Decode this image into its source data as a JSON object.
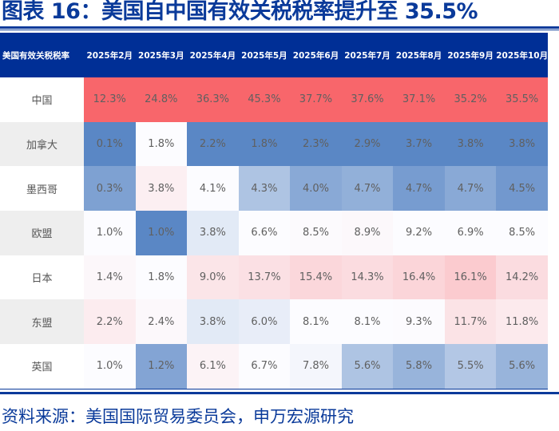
{
  "title": "图表 16：美国自中国有效关税税率提升至 35.5%",
  "source": "资料来源：美国国际贸易委员会，申万宏源研究",
  "colors": {
    "header_bg": "#002f96",
    "title": "#0a3a9a",
    "high_red": "#f8666b",
    "low_blue": "#5a87c5",
    "mid_white": "#fcfcff"
  },
  "table": {
    "corner_label": "美国有效关税税率",
    "columns": [
      "2025年2月",
      "2025年3月",
      "2025年4月",
      "2025年5月",
      "2025年6月",
      "2025年7月",
      "2025年8月",
      "2025年9月",
      "2025年10月"
    ],
    "rows": [
      {
        "label": "中国",
        "values": [
          "12.3%",
          "24.8%",
          "36.3%",
          "45.3%",
          "37.7%",
          "37.6%",
          "37.1%",
          "35.2%",
          "35.5%"
        ]
      },
      {
        "label": "加拿大",
        "values": [
          "0.1%",
          "1.8%",
          "2.2%",
          "1.8%",
          "2.3%",
          "2.9%",
          "3.7%",
          "3.8%",
          "3.8%"
        ]
      },
      {
        "label": "墨西哥",
        "values": [
          "0.3%",
          "3.8%",
          "4.1%",
          "4.3%",
          "4.0%",
          "4.7%",
          "4.7%",
          "4.7%",
          "4.5%"
        ]
      },
      {
        "label": "欧盟",
        "values": [
          "1.0%",
          "1.0%",
          "3.8%",
          "6.6%",
          "8.5%",
          "8.9%",
          "9.2%",
          "6.9%",
          "8.5%"
        ]
      },
      {
        "label": "日本",
        "values": [
          "1.4%",
          "1.8%",
          "9.0%",
          "13.7%",
          "15.4%",
          "14.3%",
          "16.4%",
          "16.1%",
          "14.2%"
        ]
      },
      {
        "label": "东盟",
        "values": [
          "2.2%",
          "2.4%",
          "3.8%",
          "6.0%",
          "8.1%",
          "8.1%",
          "9.3%",
          "11.7%",
          "11.8%"
        ]
      },
      {
        "label": "英国",
        "values": [
          "1.0%",
          "1.2%",
          "6.1%",
          "6.7%",
          "7.8%",
          "5.6%",
          "5.8%",
          "5.5%",
          "5.6%"
        ]
      }
    ]
  },
  "chart_data": {
    "type": "heatmap",
    "title": "图表 16：美国自中国有效关税税率提升至 35.5%",
    "xlabel": "",
    "ylabel": "美国有效关税税率",
    "categories": [
      "2025年2月",
      "2025年3月",
      "2025年4月",
      "2025年5月",
      "2025年6月",
      "2025年7月",
      "2025年8月",
      "2025年9月",
      "2025年10月"
    ],
    "rows": [
      "中国",
      "加拿大",
      "墨西哥",
      "欧盟",
      "日本",
      "东盟",
      "英国"
    ],
    "series": [
      {
        "name": "中国",
        "values": [
          12.3,
          24.8,
          36.3,
          45.3,
          37.7,
          37.6,
          37.1,
          35.2,
          35.5
        ]
      },
      {
        "name": "加拿大",
        "values": [
          0.1,
          1.8,
          2.2,
          1.8,
          2.3,
          2.9,
          3.7,
          3.8,
          3.8
        ]
      },
      {
        "name": "墨西哥",
        "values": [
          0.3,
          3.8,
          4.1,
          4.3,
          4.0,
          4.7,
          4.7,
          4.7,
          4.5
        ]
      },
      {
        "name": "欧盟",
        "values": [
          1.0,
          1.0,
          3.8,
          6.6,
          8.5,
          8.9,
          9.2,
          6.9,
          8.5
        ]
      },
      {
        "name": "日本",
        "values": [
          1.4,
          1.8,
          9.0,
          13.7,
          15.4,
          14.3,
          16.4,
          16.1,
          14.2
        ]
      },
      {
        "name": "东盟",
        "values": [
          2.2,
          2.4,
          3.8,
          6.0,
          8.1,
          8.1,
          9.3,
          11.7,
          11.8
        ]
      },
      {
        "name": "英国",
        "values": [
          1.0,
          1.2,
          6.1,
          6.7,
          7.8,
          5.6,
          5.8,
          5.5,
          5.6
        ]
      }
    ],
    "unit": "%",
    "color_scale": "per-column blue(low) → white → red(high)",
    "note": "资料来源：美国国际贸易委员会，申万宏源研究"
  }
}
